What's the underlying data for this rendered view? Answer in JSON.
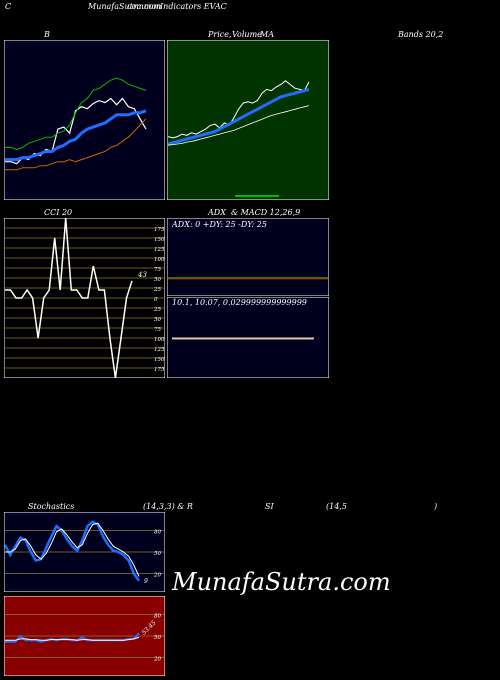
{
  "header": {
    "left_letter": "C",
    "title": "MunafaSutra.com",
    "title_overlap": "common",
    "title_rest": "Indicators EVAC"
  },
  "labels": {
    "bb_b": "B",
    "price_a": "Price,",
    "price_b": "Volume",
    "price_c": "MA",
    "bands": "Bands 20,2",
    "cci": "CCI 20",
    "adx_macd": "ADX  & MACD 12,26,9",
    "stoch_a": "Stochastics",
    "stoch_b": "(14,3,3) & R",
    "rsi_a": "SI",
    "rsi_b": "(14,5",
    "rsi_c": ")"
  },
  "watermark": "MunafaSutra.com",
  "colors": {
    "panel_dark": "#00001e",
    "panel_green": "#003300",
    "panel_red": "#880000",
    "white": "#ffffff",
    "blue": "#1f6fff",
    "green": "#00bb00",
    "orange": "#cc6600",
    "grid_gold": "#8b7a2a"
  },
  "chart_data": [
    {
      "type": "line",
      "panel": "bollinger",
      "series": [
        {
          "values": [
            38,
            38,
            36,
            42,
            40,
            46,
            44,
            50,
            48,
            70,
            72,
            66,
            88,
            92,
            90,
            95,
            98,
            96,
            100,
            94,
            100,
            92,
            90,
            80,
            70
          ]
        },
        {
          "values": [
            52,
            52,
            50,
            52,
            56,
            58,
            60,
            62,
            62,
            66,
            68,
            74,
            86,
            96,
            100,
            108,
            110,
            114,
            118,
            120,
            118,
            114,
            112,
            110,
            108
          ]
        },
        {
          "values": [
            40,
            40,
            40,
            42,
            42,
            44,
            46,
            48,
            48,
            52,
            54,
            58,
            60,
            66,
            70,
            72,
            74,
            76,
            80,
            84,
            84,
            84,
            86,
            86,
            88
          ]
        },
        {
          "values": [
            30,
            30,
            30,
            32,
            32,
            32,
            34,
            34,
            36,
            38,
            38,
            40,
            38,
            40,
            42,
            44,
            46,
            48,
            52,
            54,
            58,
            62,
            68,
            74,
            80
          ]
        }
      ]
    },
    {
      "type": "line",
      "panel": "price_ma",
      "series": [
        {
          "values": [
            42,
            40,
            42,
            46,
            44,
            48,
            46,
            50,
            54,
            60,
            62,
            56,
            64,
            60,
            72,
            86,
            96,
            98,
            96,
            100,
            112,
            118,
            116,
            122,
            126,
            132,
            126,
            120,
            118,
            116,
            130
          ]
        },
        {
          "values": [
            30,
            32,
            34,
            36,
            38,
            40,
            42,
            44,
            46,
            48,
            50,
            54,
            58,
            62,
            66,
            70,
            74,
            78,
            82,
            86,
            90,
            94,
            98,
            102,
            106,
            108,
            110,
            112,
            114,
            116,
            118
          ]
        },
        {
          "values": [
            28,
            29,
            30,
            31,
            33,
            34,
            36,
            38,
            40,
            42,
            44,
            46,
            48,
            50,
            52,
            55,
            58,
            61,
            64,
            67,
            70,
            73,
            76,
            78,
            80,
            82,
            84,
            86,
            88,
            90,
            92
          ]
        }
      ]
    },
    {
      "type": "line",
      "panel": "cci",
      "ylim": [
        -200,
        200
      ],
      "ticks": [
        175,
        150,
        125,
        100,
        75,
        50,
        25,
        0,
        -25,
        -50,
        -75,
        -100,
        -125,
        -150,
        -175
      ],
      "tick_labels": [
        "175",
        "150",
        "125",
        "100",
        "75",
        "50",
        "25",
        "0",
        "25",
        "50",
        "75",
        "100",
        "125",
        "150",
        "175"
      ],
      "last_value_label": "43",
      "values": [
        20,
        20,
        0,
        0,
        20,
        0,
        -100,
        0,
        20,
        150,
        20,
        200,
        20,
        20,
        0,
        0,
        80,
        20,
        20,
        -100,
        -200,
        -100,
        0,
        43
      ]
    },
    {
      "type": "line",
      "panel": "adx",
      "text": "ADX: 0  +DY: 25 -DY: 25"
    },
    {
      "type": "line",
      "panel": "macd",
      "text": "10.1,  10.07,  0.029999999999999"
    },
    {
      "type": "line",
      "panel": "stochastics",
      "ylim": [
        0,
        100
      ],
      "ticks": [
        80,
        50,
        20
      ],
      "tick_labels": [
        "80",
        "50",
        "20"
      ],
      "last_value_label": "9",
      "series": [
        {
          "values": [
            60,
            46,
            58,
            70,
            66,
            50,
            38,
            40,
            56,
            72,
            86,
            80,
            68,
            58,
            52,
            66,
            86,
            92,
            88,
            72,
            60,
            52,
            50,
            46,
            38,
            20,
            10
          ]
        },
        {
          "values": [
            50,
            50,
            54,
            66,
            68,
            58,
            46,
            40,
            48,
            62,
            78,
            82,
            74,
            64,
            56,
            60,
            76,
            88,
            90,
            80,
            68,
            58,
            54,
            50,
            44,
            32,
            16
          ]
        }
      ]
    },
    {
      "type": "line",
      "panel": "rsi",
      "ylim": [
        0,
        100
      ],
      "ticks": [
        80,
        50,
        20
      ],
      "tick_labels": [
        "80",
        "50",
        "20"
      ],
      "last_value_label": "53.45",
      "series": [
        {
          "values": [
            42,
            42,
            42,
            50,
            44,
            44,
            44,
            42,
            44,
            46,
            44,
            46,
            46,
            44,
            44,
            48,
            44,
            44,
            44,
            44,
            44,
            44,
            44,
            44,
            46,
            46,
            54
          ]
        },
        {
          "values": [
            44,
            44,
            44,
            46,
            46,
            45,
            45,
            44,
            44,
            45,
            45,
            45,
            45,
            45,
            44,
            45,
            45,
            44,
            44,
            44,
            44,
            44,
            44,
            44,
            45,
            46,
            48
          ]
        }
      ]
    }
  ]
}
